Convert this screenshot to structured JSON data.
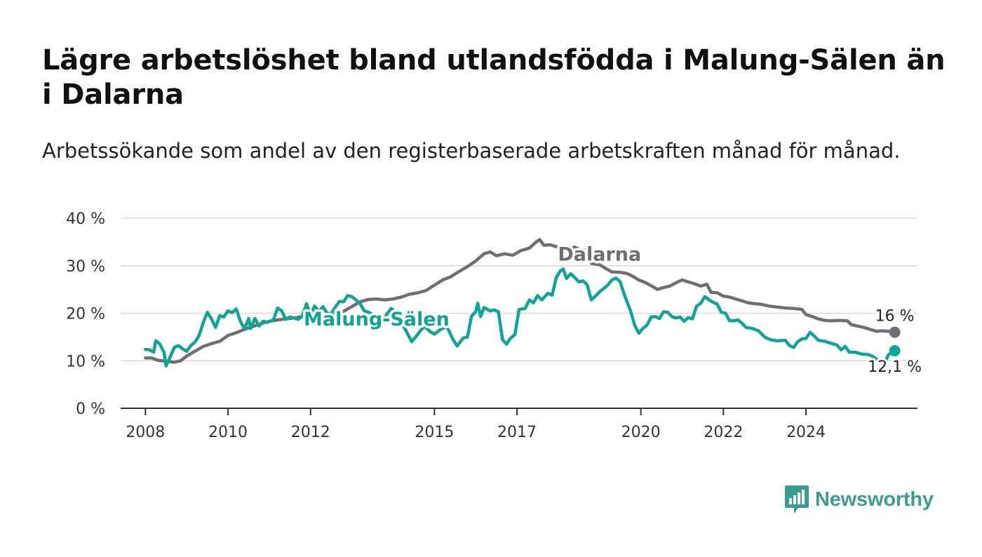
{
  "title": "Lägre arbetslöshet bland utlandsfödda i Malung-Sälen än i Dalarna",
  "subtitle": "Arbetssökande som andel av den registerbaserade arbetskraften månad för månad.",
  "brand": {
    "name": "Newsworthy",
    "color": "#3a9d8f"
  },
  "chart_data": {
    "type": "line",
    "grid": true,
    "ylim": [
      0,
      40
    ],
    "yticks": [
      0,
      10,
      20,
      30,
      40
    ],
    "ytick_labels": [
      "0 %",
      "10 %",
      "20 %",
      "30 %",
      "40 %"
    ],
    "xlim": [
      2007.4,
      2026.7
    ],
    "xticks": [
      2008,
      2010,
      2012,
      2015,
      2017,
      2020,
      2022,
      2024
    ],
    "xtick_labels": [
      "2008",
      "2010",
      "2012",
      "2015",
      "2017",
      "2020",
      "2022",
      "2024"
    ],
    "series": [
      {
        "name": "Dalarna",
        "color": "#6e6e73",
        "label_at": 2019.0,
        "end_label": "16 %",
        "points": [
          [
            2008.0,
            10.6
          ],
          [
            2008.15,
            10.6
          ],
          [
            2008.3,
            10.1
          ],
          [
            2008.5,
            9.9
          ],
          [
            2008.7,
            9.7
          ],
          [
            2008.85,
            10.0
          ],
          [
            2009.0,
            11.0
          ],
          [
            2009.2,
            12.0
          ],
          [
            2009.4,
            13.0
          ],
          [
            2009.6,
            13.6
          ],
          [
            2009.8,
            14.1
          ],
          [
            2010.0,
            15.3
          ],
          [
            2010.2,
            15.9
          ],
          [
            2010.4,
            16.6
          ],
          [
            2010.6,
            17.2
          ],
          [
            2010.8,
            17.8
          ],
          [
            2011.0,
            18.3
          ],
          [
            2011.2,
            18.6
          ],
          [
            2011.4,
            18.8
          ],
          [
            2011.6,
            19.0
          ],
          [
            2011.8,
            19.3
          ],
          [
            2012.0,
            19.5
          ],
          [
            2012.2,
            19.6
          ],
          [
            2012.4,
            19.4
          ],
          [
            2012.6,
            19.8
          ],
          [
            2012.8,
            20.4
          ],
          [
            2013.0,
            21.4
          ],
          [
            2013.2,
            22.4
          ],
          [
            2013.4,
            22.9
          ],
          [
            2013.6,
            23.0
          ],
          [
            2013.8,
            22.8
          ],
          [
            2014.0,
            23.0
          ],
          [
            2014.2,
            23.4
          ],
          [
            2014.4,
            24.0
          ],
          [
            2014.6,
            24.3
          ],
          [
            2014.8,
            24.8
          ],
          [
            2015.0,
            25.9
          ],
          [
            2015.2,
            27.0
          ],
          [
            2015.4,
            27.7
          ],
          [
            2015.6,
            28.8
          ],
          [
            2015.8,
            29.8
          ],
          [
            2016.0,
            31.0
          ],
          [
            2016.2,
            32.5
          ],
          [
            2016.35,
            32.9
          ],
          [
            2016.5,
            32.1
          ],
          [
            2016.7,
            32.5
          ],
          [
            2016.9,
            32.2
          ],
          [
            2017.1,
            33.2
          ],
          [
            2017.3,
            33.7
          ],
          [
            2017.45,
            34.9
          ],
          [
            2017.55,
            35.5
          ],
          [
            2017.65,
            34.3
          ],
          [
            2017.8,
            34.4
          ],
          [
            2017.95,
            34.0
          ],
          [
            2018.1,
            33.9
          ],
          [
            2018.25,
            33.6
          ],
          [
            2018.4,
            33.9
          ],
          [
            2018.55,
            33.3
          ],
          [
            2018.7,
            33.2
          ],
          [
            2018.8,
            30.5
          ],
          [
            2019.0,
            30.2
          ],
          [
            2019.15,
            29.4
          ],
          [
            2019.3,
            28.7
          ],
          [
            2019.5,
            28.6
          ],
          [
            2019.65,
            28.4
          ],
          [
            2019.8,
            27.8
          ],
          [
            2019.95,
            27.0
          ],
          [
            2020.1,
            26.5
          ],
          [
            2020.25,
            25.8
          ],
          [
            2020.4,
            25.0
          ],
          [
            2020.55,
            25.4
          ],
          [
            2020.7,
            25.7
          ],
          [
            2020.85,
            26.4
          ],
          [
            2021.0,
            27.0
          ],
          [
            2021.15,
            26.6
          ],
          [
            2021.3,
            26.2
          ],
          [
            2021.45,
            25.7
          ],
          [
            2021.6,
            26.1
          ],
          [
            2021.7,
            24.4
          ],
          [
            2021.85,
            24.3
          ],
          [
            2022.0,
            23.6
          ],
          [
            2022.15,
            23.4
          ],
          [
            2022.3,
            23.0
          ],
          [
            2022.45,
            22.6
          ],
          [
            2022.6,
            22.2
          ],
          [
            2022.75,
            22.0
          ],
          [
            2022.9,
            21.9
          ],
          [
            2023.1,
            21.5
          ],
          [
            2023.3,
            21.3
          ],
          [
            2023.5,
            21.1
          ],
          [
            2023.7,
            21.0
          ],
          [
            2023.9,
            20.8
          ],
          [
            2024.0,
            19.7
          ],
          [
            2024.15,
            19.3
          ],
          [
            2024.3,
            18.8
          ],
          [
            2024.45,
            18.5
          ],
          [
            2024.6,
            18.4
          ],
          [
            2024.8,
            18.5
          ],
          [
            2025.0,
            18.4
          ],
          [
            2025.1,
            17.6
          ],
          [
            2025.25,
            17.3
          ],
          [
            2025.4,
            17.0
          ],
          [
            2025.55,
            16.6
          ],
          [
            2025.7,
            16.2
          ],
          [
            2025.85,
            16.3
          ],
          [
            2026.0,
            16.2
          ],
          [
            2026.15,
            16.0
          ]
        ]
      },
      {
        "name": "Malung-Sälen",
        "color": "#11a396",
        "label_at": 2013.6,
        "end_label": "12,1 %",
        "points": [
          [
            2008.0,
            12.4
          ],
          [
            2008.1,
            12.3
          ],
          [
            2008.2,
            11.8
          ],
          [
            2008.25,
            14.2
          ],
          [
            2008.35,
            13.5
          ],
          [
            2008.45,
            11.8
          ],
          [
            2008.5,
            8.9
          ],
          [
            2008.6,
            10.8
          ],
          [
            2008.7,
            12.8
          ],
          [
            2008.8,
            13.2
          ],
          [
            2008.9,
            12.5
          ],
          [
            2009.0,
            12.0
          ],
          [
            2009.1,
            13.2
          ],
          [
            2009.2,
            13.9
          ],
          [
            2009.3,
            15.3
          ],
          [
            2009.4,
            18.0
          ],
          [
            2009.5,
            20.2
          ],
          [
            2009.6,
            18.8
          ],
          [
            2009.7,
            17.0
          ],
          [
            2009.8,
            19.5
          ],
          [
            2009.9,
            19.2
          ],
          [
            2010.0,
            20.5
          ],
          [
            2010.1,
            20.1
          ],
          [
            2010.2,
            20.9
          ],
          [
            2010.3,
            18.3
          ],
          [
            2010.4,
            16.7
          ],
          [
            2010.5,
            18.9
          ],
          [
            2010.55,
            16.8
          ],
          [
            2010.65,
            18.9
          ],
          [
            2010.75,
            17.3
          ],
          [
            2010.85,
            18.3
          ],
          [
            2010.95,
            18.1
          ],
          [
            2011.1,
            18.6
          ],
          [
            2011.2,
            21.1
          ],
          [
            2011.3,
            20.5
          ],
          [
            2011.4,
            18.7
          ],
          [
            2011.5,
            19.2
          ],
          [
            2011.6,
            19.0
          ],
          [
            2011.7,
            18.7
          ],
          [
            2011.8,
            19.4
          ],
          [
            2011.9,
            22.0
          ],
          [
            2012.0,
            19.7
          ],
          [
            2012.1,
            21.5
          ],
          [
            2012.2,
            20.3
          ],
          [
            2012.3,
            21.4
          ],
          [
            2012.4,
            20.0
          ],
          [
            2012.5,
            19.9
          ],
          [
            2012.6,
            21.3
          ],
          [
            2012.7,
            22.5
          ],
          [
            2012.8,
            22.4
          ],
          [
            2012.9,
            23.7
          ],
          [
            2013.0,
            23.5
          ],
          [
            2013.1,
            22.8
          ],
          [
            2013.2,
            22.0
          ],
          [
            2013.3,
            20.5
          ],
          [
            2013.4,
            20.2
          ],
          [
            2013.5,
            19.8
          ],
          [
            2013.6,
            18.9
          ],
          [
            2013.7,
            17.5
          ],
          [
            2013.8,
            19.2
          ],
          [
            2013.95,
            21.0
          ],
          [
            2014.1,
            20.0
          ],
          [
            2014.3,
            16.5
          ],
          [
            2014.45,
            14.0
          ],
          [
            2014.6,
            15.6
          ],
          [
            2014.75,
            17.3
          ],
          [
            2014.9,
            16.1
          ],
          [
            2015.0,
            15.6
          ],
          [
            2015.15,
            16.6
          ],
          [
            2015.3,
            17.2
          ],
          [
            2015.45,
            14.5
          ],
          [
            2015.55,
            13.1
          ],
          [
            2015.7,
            14.8
          ],
          [
            2015.8,
            15.0
          ],
          [
            2015.9,
            19.4
          ],
          [
            2016.0,
            20.3
          ],
          [
            2016.05,
            22.1
          ],
          [
            2016.12,
            19.3
          ],
          [
            2016.2,
            21.2
          ],
          [
            2016.35,
            20.5
          ],
          [
            2016.45,
            20.7
          ],
          [
            2016.55,
            20.3
          ],
          [
            2016.65,
            14.4
          ],
          [
            2016.75,
            13.5
          ],
          [
            2016.85,
            14.8
          ],
          [
            2016.95,
            15.5
          ],
          [
            2017.05,
            20.8
          ],
          [
            2017.2,
            21.0
          ],
          [
            2017.3,
            22.8
          ],
          [
            2017.4,
            22.2
          ],
          [
            2017.5,
            23.7
          ],
          [
            2017.6,
            22.8
          ],
          [
            2017.75,
            24.2
          ],
          [
            2017.85,
            23.8
          ],
          [
            2017.95,
            27.5
          ],
          [
            2018.05,
            28.9
          ],
          [
            2018.12,
            29.3
          ],
          [
            2018.2,
            27.3
          ],
          [
            2018.3,
            28.3
          ],
          [
            2018.4,
            27.5
          ],
          [
            2018.5,
            26.6
          ],
          [
            2018.6,
            26.8
          ],
          [
            2018.7,
            26.0
          ],
          [
            2018.8,
            22.8
          ],
          [
            2018.9,
            23.6
          ],
          [
            2019.0,
            24.5
          ],
          [
            2019.1,
            25.2
          ],
          [
            2019.2,
            25.9
          ],
          [
            2019.3,
            27.0
          ],
          [
            2019.4,
            27.4
          ],
          [
            2019.5,
            26.6
          ],
          [
            2019.6,
            23.9
          ],
          [
            2019.75,
            20.5
          ],
          [
            2019.85,
            17.5
          ],
          [
            2019.95,
            15.8
          ],
          [
            2020.05,
            16.8
          ],
          [
            2020.15,
            17.5
          ],
          [
            2020.25,
            19.2
          ],
          [
            2020.35,
            19.3
          ],
          [
            2020.45,
            18.9
          ],
          [
            2020.55,
            20.3
          ],
          [
            2020.65,
            20.2
          ],
          [
            2020.75,
            19.3
          ],
          [
            2020.85,
            19.0
          ],
          [
            2020.95,
            19.2
          ],
          [
            2021.05,
            18.3
          ],
          [
            2021.15,
            19.1
          ],
          [
            2021.25,
            18.8
          ],
          [
            2021.35,
            21.5
          ],
          [
            2021.45,
            22.1
          ],
          [
            2021.55,
            23.5
          ],
          [
            2021.65,
            22.8
          ],
          [
            2021.75,
            22.3
          ],
          [
            2021.85,
            21.9
          ],
          [
            2021.95,
            20.2
          ],
          [
            2022.05,
            20.0
          ],
          [
            2022.15,
            18.4
          ],
          [
            2022.25,
            18.4
          ],
          [
            2022.35,
            18.6
          ],
          [
            2022.45,
            17.9
          ],
          [
            2022.55,
            17.0
          ],
          [
            2022.7,
            16.8
          ],
          [
            2022.85,
            16.3
          ],
          [
            2023.0,
            15.0
          ],
          [
            2023.15,
            14.4
          ],
          [
            2023.3,
            14.2
          ],
          [
            2023.5,
            14.3
          ],
          [
            2023.6,
            13.2
          ],
          [
            2023.7,
            12.8
          ],
          [
            2023.8,
            14.0
          ],
          [
            2023.9,
            14.6
          ],
          [
            2024.0,
            14.7
          ],
          [
            2024.1,
            16.0
          ],
          [
            2024.2,
            15.2
          ],
          [
            2024.3,
            14.3
          ],
          [
            2024.45,
            14.1
          ],
          [
            2024.6,
            13.7
          ],
          [
            2024.75,
            13.3
          ],
          [
            2024.85,
            12.3
          ],
          [
            2024.95,
            13.0
          ],
          [
            2025.05,
            11.8
          ],
          [
            2025.2,
            11.8
          ],
          [
            2025.35,
            11.4
          ],
          [
            2025.5,
            11.3
          ],
          [
            2025.6,
            11.0
          ],
          [
            2025.7,
            10.4
          ],
          [
            2025.8,
            9.8
          ],
          [
            2025.9,
            9.4
          ],
          [
            2026.0,
            11.3
          ],
          [
            2026.15,
            12.1
          ]
        ]
      }
    ]
  }
}
